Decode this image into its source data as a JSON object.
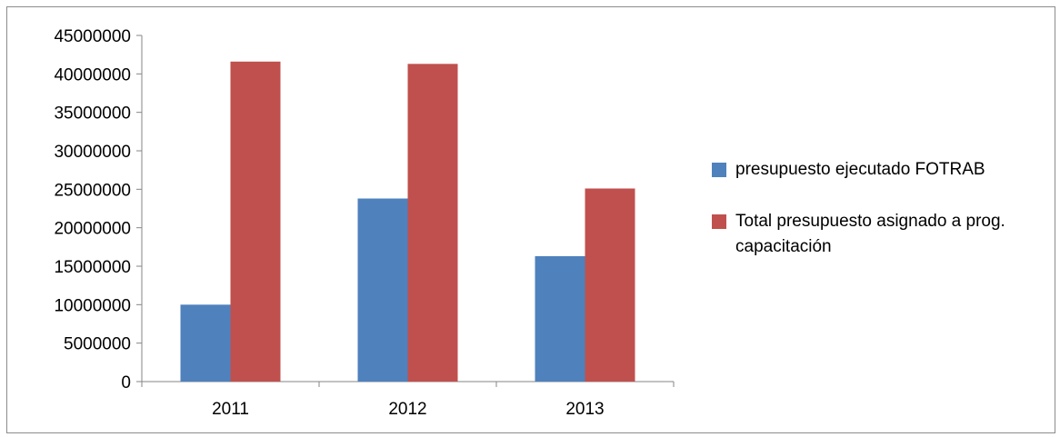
{
  "chart_data": {
    "type": "bar",
    "categories": [
      "2011",
      "2012",
      "2013"
    ],
    "series": [
      {
        "name": "presupuesto ejecutado FOTRAB",
        "values": [
          10000000,
          23800000,
          16300000
        ],
        "color": "#4f81bd"
      },
      {
        "name": "Total presupuesto asignado a prog. capacitación",
        "values": [
          41600000,
          41300000,
          25100000
        ],
        "color": "#c0504d"
      }
    ],
    "title": "",
    "xlabel": "",
    "ylabel": "",
    "ylim": [
      0,
      45000000
    ],
    "yticks": [
      0,
      5000000,
      10000000,
      15000000,
      20000000,
      25000000,
      30000000,
      35000000,
      40000000,
      45000000
    ],
    "ytick_labels": [
      "0",
      "5000000",
      "10000000",
      "15000000",
      "20000000",
      "25000000",
      "30000000",
      "35000000",
      "40000000",
      "45000000"
    ],
    "grid": false,
    "legend_position": "right"
  }
}
